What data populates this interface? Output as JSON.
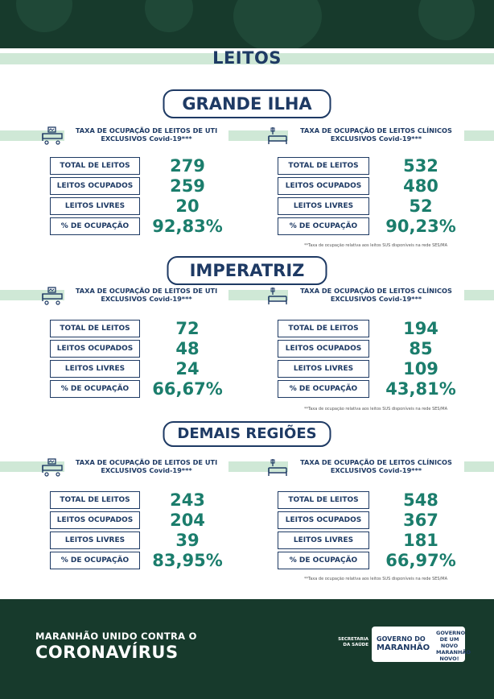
{
  "page_title": "LEITOS",
  "footnote": "**Taxa de ocupação relativa aos leitos SUS disponíveis na rede SES/MA",
  "regions": [
    {
      "name": "GRANDE ILHA",
      "uti": {
        "heading_line1": "TAXA DE OCUPAÇÃO DE LEITOS DE UTI",
        "heading_line2": "EXCLUSIVOS Covid-19***",
        "rows": [
          {
            "label": "TOTAL DE LEITOS",
            "value": "279"
          },
          {
            "label": "LEITOS OCUPADOS",
            "value": "259"
          },
          {
            "label": "LEITOS LIVRES",
            "value": "20"
          },
          {
            "label": "% DE OCUPAÇÃO",
            "value": "92,83%"
          }
        ]
      },
      "clinicos": {
        "heading_line1": "TAXA DE OCUPAÇÃO DE LEITOS CLÍNICOS",
        "heading_line2": "EXCLUSIVOS Covid-19***",
        "rows": [
          {
            "label": "TOTAL DE LEITOS",
            "value": "532"
          },
          {
            "label": "LEITOS OCUPADOS",
            "value": "480"
          },
          {
            "label": "LEITOS LIVRES",
            "value": "52"
          },
          {
            "label": "% DE OCUPAÇÃO",
            "value": "90,23%"
          }
        ]
      }
    },
    {
      "name": "IMPERATRIZ",
      "uti": {
        "heading_line1": "TAXA DE OCUPAÇÃO DE LEITOS DE UTI",
        "heading_line2": "EXCLUSIVOS Covid-19***",
        "rows": [
          {
            "label": "TOTAL DE LEITOS",
            "value": "72"
          },
          {
            "label": "LEITOS OCUPADOS",
            "value": "48"
          },
          {
            "label": "LEITOS LIVRES",
            "value": "24"
          },
          {
            "label": "% DE OCUPAÇÃO",
            "value": "66,67%"
          }
        ]
      },
      "clinicos": {
        "heading_line1": "TAXA DE OCUPAÇÃO DE LEITOS CLÍNICOS",
        "heading_line2": "EXCLUSIVOS Covid-19***",
        "rows": [
          {
            "label": "TOTAL DE LEITOS",
            "value": "194"
          },
          {
            "label": "LEITOS OCUPADOS",
            "value": "85"
          },
          {
            "label": "LEITOS LIVRES",
            "value": "109"
          },
          {
            "label": "% DE OCUPAÇÃO",
            "value": "43,81%"
          }
        ]
      }
    },
    {
      "name": "DEMAIS REGIÕES",
      "uti": {
        "heading_line1": "TAXA DE OCUPAÇÃO DE LEITOS DE UTI",
        "heading_line2": "EXCLUSIVOS Covid-19***",
        "rows": [
          {
            "label": "TOTAL DE LEITOS",
            "value": "243"
          },
          {
            "label": "LEITOS OCUPADOS",
            "value": "204"
          },
          {
            "label": "LEITOS LIVRES",
            "value": "39"
          },
          {
            "label": "% DE OCUPAÇÃO",
            "value": "83,95%"
          }
        ]
      },
      "clinicos": {
        "heading_line1": "TAXA DE OCUPAÇÃO DE LEITOS CLÍNICOS",
        "heading_line2": "EXCLUSIVOS Covid-19***",
        "rows": [
          {
            "label": "TOTAL DE LEITOS",
            "value": "548"
          },
          {
            "label": "LEITOS OCUPADOS",
            "value": "367"
          },
          {
            "label": "LEITOS LIVRES",
            "value": "181"
          },
          {
            "label": "% DE OCUPAÇÃO",
            "value": "66,97%"
          }
        ]
      }
    }
  ],
  "footer": {
    "line1": "MARANHÃO UNIDO CONTRA O",
    "line2": "CORONAVÍRUS",
    "secretaria": "SECRETARIA DA SAÚDE",
    "gov_line1": "GOVERNO DO",
    "gov_line2": "MARANHÃO",
    "gov_slogan": "GOVERNO DE UM NOVO MARANHÃO NOVO!"
  },
  "colors": {
    "dark_green": "#173a2c",
    "navy": "#1e3a64",
    "teal": "#1b7d6c",
    "mint": "#cfe8d6"
  }
}
